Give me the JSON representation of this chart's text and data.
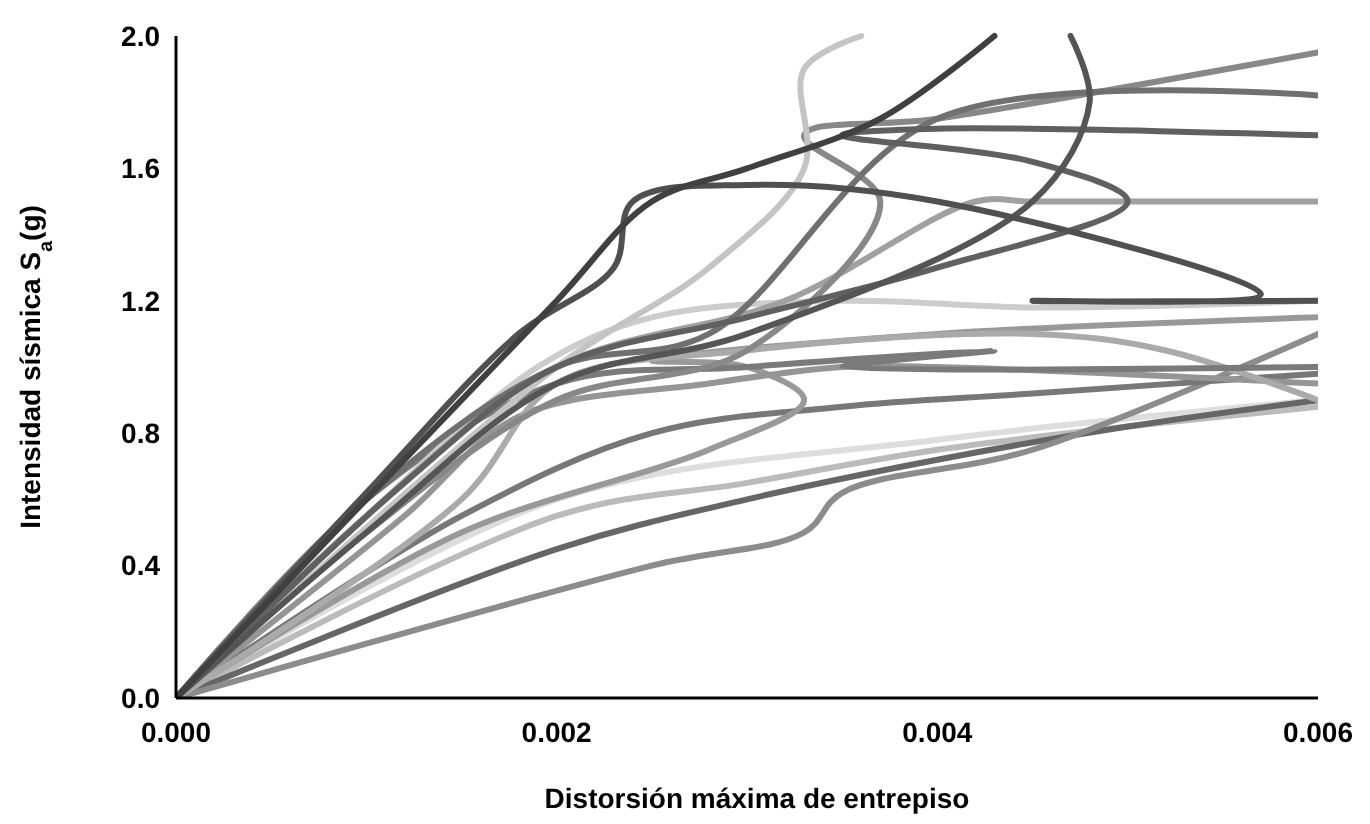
{
  "chart_data": {
    "type": "line",
    "xlabel": "Distorsión máxima de entrepiso",
    "ylabel": "Intensidad sísmica  S$_{a}$(g)",
    "xlim": [
      0,
      0.006
    ],
    "ylim": [
      0,
      2
    ],
    "xticks": [
      {
        "value": 0,
        "label": "0.000"
      },
      {
        "value": 0.002,
        "label": "0.002"
      },
      {
        "value": 0.004,
        "label": "0.004"
      },
      {
        "value": 0.006,
        "label": "0.006"
      }
    ],
    "yticks": [
      {
        "value": 0,
        "label": "0.0"
      },
      {
        "value": 0.4,
        "label": "0.4"
      },
      {
        "value": 0.8,
        "label": "0.8"
      },
      {
        "value": 1.2,
        "label": "1.2"
      },
      {
        "value": 1.6,
        "label": "1.6"
      },
      {
        "value": 2,
        "label": "2.0"
      }
    ],
    "grid": false,
    "marker": "none",
    "line_style": "solid",
    "series": [
      {
        "color": "#dddddd",
        "x": [
          0,
          0.002,
          0.004,
          0.006
        ],
        "values": [
          0,
          0.6,
          0.78,
          0.9
        ]
      },
      {
        "color": "#bbbbbb",
        "x": [
          0,
          0.002,
          0.003,
          0.004,
          0.005,
          0.006
        ],
        "values": [
          0,
          0.55,
          0.65,
          0.75,
          0.82,
          0.88
        ]
      },
      {
        "color": "#666666",
        "x": [
          0,
          0.002,
          0.003,
          0.004,
          0.005,
          0.006
        ],
        "values": [
          0,
          0.45,
          0.6,
          0.72,
          0.82,
          0.9
        ]
      },
      {
        "color": "#8c8c8c",
        "x": [
          0,
          0.0025,
          0.0033,
          0.0035,
          0.0045,
          0.006
        ],
        "values": [
          0,
          0.4,
          0.5,
          0.62,
          0.75,
          1.1
        ]
      },
      {
        "color": "#777777",
        "x": [
          0,
          0.0015,
          0.0025,
          0.0035,
          0.0045,
          0.006
        ],
        "values": [
          0,
          0.55,
          0.8,
          0.88,
          0.92,
          0.98
        ]
      },
      {
        "color": "#999999",
        "x": [
          0,
          0.0015,
          0.0028,
          0.0033,
          0.003,
          0.0025,
          0.004,
          0.006
        ],
        "values": [
          0,
          0.5,
          0.75,
          0.9,
          1.0,
          1.02,
          1.1,
          1.15
        ]
      },
      {
        "color": "#959595",
        "x": [
          0,
          0.0012,
          0.0018,
          0.0028,
          0.0035,
          0.004,
          0.006
        ],
        "values": [
          0,
          0.55,
          0.85,
          0.95,
          1.0,
          1.0,
          0.95
        ]
      },
      {
        "color": "#aaaaaa",
        "x": [
          0,
          0.0015,
          0.002,
          0.003,
          0.0045,
          0.0052,
          0.006
        ],
        "values": [
          0,
          0.6,
          0.95,
          1.05,
          1.1,
          1.05,
          0.9
        ]
      },
      {
        "color": "#7a7a7a",
        "x": [
          0,
          0.001,
          0.002,
          0.003,
          0.0043,
          0.0035,
          0.006
        ],
        "values": [
          0,
          0.6,
          0.95,
          1.0,
          1.05,
          1.0,
          1.0
        ]
      },
      {
        "color": "#cccccc",
        "x": [
          0,
          0.001,
          0.0019,
          0.0025,
          0.0035,
          0.0045,
          0.006
        ],
        "values": [
          0,
          0.55,
          1.0,
          1.15,
          1.2,
          1.18,
          1.2
        ]
      },
      {
        "color": "#a0a0a0",
        "x": [
          0,
          0.001,
          0.002,
          0.0032,
          0.0042,
          0.0045,
          0.006
        ],
        "values": [
          0,
          0.55,
          1.0,
          1.2,
          1.5,
          1.5,
          1.5
        ]
      },
      {
        "color": "#888888",
        "x": [
          0,
          0.001,
          0.002,
          0.003,
          0.0037,
          0.0033,
          0.004,
          0.006
        ],
        "values": [
          0,
          0.5,
          0.9,
          1.05,
          1.5,
          1.7,
          1.75,
          1.95
        ]
      },
      {
        "color": "#707070",
        "x": [
          0,
          0.001,
          0.002,
          0.0028,
          0.004,
          0.006
        ],
        "values": [
          0,
          0.6,
          1.0,
          1.1,
          1.75,
          1.82
        ]
      },
      {
        "color": "#c4c4c4",
        "x": [
          0,
          0.002,
          0.0028,
          0.0033,
          0.0033,
          0.0036
        ],
        "values": [
          0,
          1.0,
          1.3,
          1.6,
          1.9,
          2.0
        ]
      },
      {
        "color": "#606060",
        "x": [
          0,
          0.0012,
          0.002,
          0.003,
          0.004,
          0.005,
          0.0045,
          0.0035,
          0.004,
          0.006
        ],
        "values": [
          0,
          0.65,
          1.0,
          1.15,
          1.3,
          1.5,
          1.62,
          1.7,
          1.72,
          1.7
        ]
      },
      {
        "color": "#555555",
        "x": [
          0,
          0.001,
          0.002,
          0.003,
          0.0045,
          0.0048,
          0.0047
        ],
        "values": [
          0,
          0.5,
          0.95,
          1.1,
          1.5,
          1.8,
          2.0
        ]
      },
      {
        "color": "#505050",
        "x": [
          0,
          0.001,
          0.0018,
          0.0023,
          0.0024,
          0.003,
          0.004,
          0.0057,
          0.0045,
          0.006
        ],
        "values": [
          0,
          0.62,
          1.1,
          1.3,
          1.5,
          1.55,
          1.5,
          1.22,
          1.2,
          1.2
        ]
      },
      {
        "color": "#404040",
        "x": [
          0,
          0.001,
          0.002,
          0.0025,
          0.003,
          0.0037,
          0.0043
        ],
        "values": [
          0,
          0.6,
          1.2,
          1.5,
          1.6,
          1.75,
          2.0
        ]
      }
    ]
  }
}
